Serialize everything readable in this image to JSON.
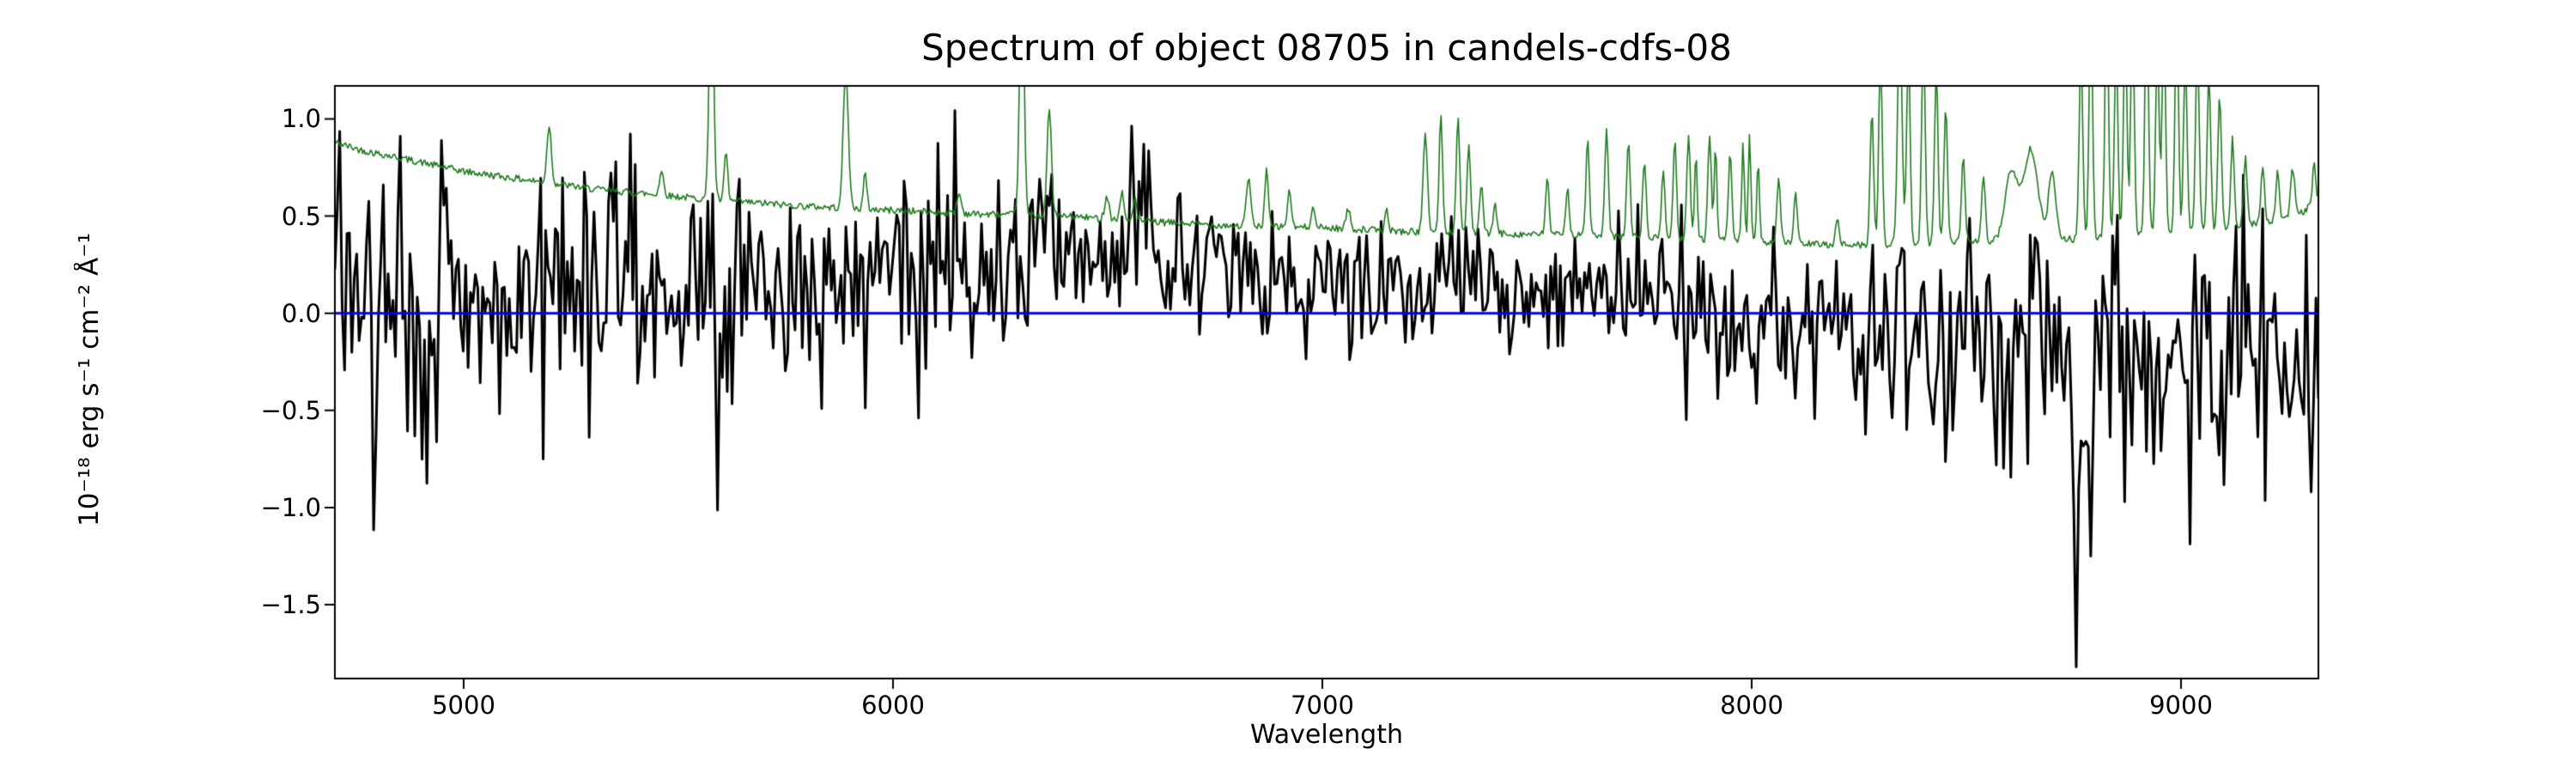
{
  "figure": {
    "title": "Spectrum of object 08705 in candels-cdfs-08",
    "xlabel": "Wavelength",
    "ylabel": "10⁻¹⁸ erg s⁻¹ cm⁻² Å⁻¹",
    "background": "#ffffff"
  },
  "chart_data": {
    "type": "line",
    "title": "Spectrum of object 08705 in candels-cdfs-08",
    "xlabel": "Wavelength",
    "ylabel": "10^-18 erg s^-1 cm^-2 A^-1",
    "xlim": [
      4700,
      9320
    ],
    "ylim": [
      -1.88,
      1.17
    ],
    "xticks": [
      5000,
      6000,
      7000,
      8000,
      9000
    ],
    "xtick_labels": [
      "5000",
      "6000",
      "7000",
      "8000",
      "9000"
    ],
    "yticks": [
      1.0,
      0.5,
      0.0,
      -0.5,
      -1.0,
      -1.5
    ],
    "ytick_labels": [
      "1.0",
      "0.5",
      "0.0",
      "−0.5",
      "−1.0",
      "−1.5"
    ],
    "grid": false,
    "legend_position": "none",
    "axis_color": "#000000",
    "series": [
      {
        "name": "object-flux-spectrum",
        "type": "noisy-line",
        "color": "#000000",
        "linewidth": 3,
        "seed": 8705,
        "n_points": 820,
        "mean_anchors": [
          [
            4700,
            0.05
          ],
          [
            5000,
            0.0
          ],
          [
            5500,
            0.08
          ],
          [
            6000,
            0.2
          ],
          [
            6400,
            0.28
          ],
          [
            6700,
            0.32
          ],
          [
            7000,
            0.18
          ],
          [
            7400,
            0.12
          ],
          [
            7800,
            0.05
          ],
          [
            8100,
            -0.05
          ],
          [
            8500,
            -0.12
          ],
          [
            8750,
            -0.3
          ],
          [
            9000,
            -0.18
          ],
          [
            9320,
            -0.3
          ]
        ],
        "sigma_anchors": [
          [
            4700,
            0.4
          ],
          [
            5000,
            0.33
          ],
          [
            5600,
            0.3
          ],
          [
            6200,
            0.26
          ],
          [
            6700,
            0.2
          ],
          [
            7200,
            0.18
          ],
          [
            7800,
            0.22
          ],
          [
            8300,
            0.24
          ],
          [
            8700,
            0.4
          ],
          [
            9000,
            0.3
          ],
          [
            9320,
            0.33
          ]
        ],
        "spikes": [
          [
            8757,
            -1.82
          ],
          [
            8792,
            -1.25
          ],
          [
            9305,
            -0.92
          ]
        ]
      },
      {
        "name": "noise-sky-spectrum",
        "type": "sky-line",
        "color": "#1f7a1f",
        "linewidth": 1.6,
        "seed": 42,
        "n_points": 1500,
        "jitter": 0.018,
        "continuum_anchors": [
          [
            4700,
            0.88
          ],
          [
            4760,
            0.84
          ],
          [
            4850,
            0.8
          ],
          [
            5000,
            0.73
          ],
          [
            5100,
            0.7
          ],
          [
            5200,
            0.67
          ],
          [
            5300,
            0.64
          ],
          [
            5450,
            0.61
          ],
          [
            5600,
            0.58
          ],
          [
            5800,
            0.55
          ],
          [
            6000,
            0.53
          ],
          [
            6200,
            0.51
          ],
          [
            6400,
            0.5
          ],
          [
            6600,
            0.47
          ],
          [
            6800,
            0.45
          ],
          [
            7000,
            0.44
          ],
          [
            7200,
            0.42
          ],
          [
            7400,
            0.41
          ],
          [
            7600,
            0.4
          ],
          [
            7800,
            0.385
          ],
          [
            8000,
            0.37
          ],
          [
            8150,
            0.355
          ],
          [
            8250,
            0.35
          ],
          [
            8400,
            0.36
          ],
          [
            8550,
            0.37
          ],
          [
            8650,
            0.4
          ],
          [
            8750,
            0.38
          ],
          [
            8900,
            0.4
          ],
          [
            9000,
            0.42
          ],
          [
            9100,
            0.44
          ],
          [
            9200,
            0.47
          ],
          [
            9270,
            0.5
          ],
          [
            9320,
            0.58
          ]
        ],
        "sky_lines": [
          [
            5199,
            0.3,
            5
          ],
          [
            5461,
            0.12,
            5
          ],
          [
            5577,
            1.3,
            5
          ],
          [
            5611,
            0.25,
            4
          ],
          [
            5890,
            0.7,
            6
          ],
          [
            5935,
            0.18,
            4
          ],
          [
            6154,
            0.1,
            5
          ],
          [
            6300,
            1.4,
            5
          ],
          [
            6364,
            0.55,
            5
          ],
          [
            6498,
            0.12,
            5
          ],
          [
            6533,
            0.15,
            4
          ],
          [
            6563,
            0.12,
            4
          ],
          [
            6828,
            0.25,
            5
          ],
          [
            6870,
            0.3,
            4
          ],
          [
            6923,
            0.2,
            4
          ],
          [
            6978,
            0.12,
            4
          ],
          [
            7060,
            0.1,
            5
          ],
          [
            7150,
            0.1,
            4
          ],
          [
            7240,
            0.5,
            5
          ],
          [
            7276,
            0.6,
            4
          ],
          [
            7316,
            0.6,
            4
          ],
          [
            7341,
            0.45,
            4
          ],
          [
            7370,
            0.25,
            4
          ],
          [
            7402,
            0.15,
            4
          ],
          [
            7524,
            0.3,
            4
          ],
          [
            7571,
            0.25,
            4
          ],
          [
            7618,
            0.5,
            4
          ],
          [
            7662,
            0.55,
            4
          ],
          [
            7713,
            0.5,
            4
          ],
          [
            7750,
            0.4,
            4
          ],
          [
            7794,
            0.35,
            4
          ],
          [
            7821,
            0.5,
            4
          ],
          [
            7853,
            0.55,
            4
          ],
          [
            7870,
            0.45,
            3
          ],
          [
            7902,
            0.55,
            4
          ],
          [
            7916,
            0.5,
            3
          ],
          [
            7950,
            0.45,
            4
          ],
          [
            7980,
            0.5,
            3
          ],
          [
            7995,
            0.55,
            3
          ],
          [
            8015,
            0.4,
            3
          ],
          [
            8063,
            0.35,
            4
          ],
          [
            8102,
            0.25,
            4
          ],
          [
            8200,
            0.15,
            4
          ],
          [
            8280,
            0.7,
            4
          ],
          [
            8300,
            1.0,
            4
          ],
          [
            8345,
            1.2,
            5
          ],
          [
            8365,
            1.0,
            4
          ],
          [
            8400,
            1.1,
            4
          ],
          [
            8430,
            0.9,
            4
          ],
          [
            8452,
            0.7,
            4
          ],
          [
            8493,
            0.45,
            4
          ],
          [
            8540,
            0.35,
            4
          ],
          [
            8605,
            0.35,
            14
          ],
          [
            8650,
            0.45,
            16
          ],
          [
            8700,
            0.35,
            8
          ],
          [
            8767,
            1.0,
            4
          ],
          [
            8790,
            1.2,
            4
          ],
          [
            8827,
            1.3,
            4
          ],
          [
            8849,
            1.0,
            4
          ],
          [
            8870,
            1.1,
            4
          ],
          [
            8887,
            1.2,
            4
          ],
          [
            8920,
            1.3,
            4
          ],
          [
            8945,
            1.0,
            4
          ],
          [
            8960,
            1.1,
            4
          ],
          [
            8990,
            1.2,
            4
          ],
          [
            9010,
            0.9,
            4
          ],
          [
            9038,
            1.0,
            4
          ],
          [
            9065,
            0.8,
            4
          ],
          [
            9090,
            0.7,
            4
          ],
          [
            9120,
            0.45,
            4
          ],
          [
            9150,
            0.35,
            4
          ],
          [
            9190,
            0.3,
            4
          ],
          [
            9225,
            0.25,
            4
          ],
          [
            9260,
            0.25,
            5
          ],
          [
            9310,
            0.2,
            4
          ]
        ]
      },
      {
        "name": "zero-model-line",
        "type": "hline",
        "color": "#0000ff",
        "linewidth": 3,
        "y": 0.0
      }
    ]
  }
}
